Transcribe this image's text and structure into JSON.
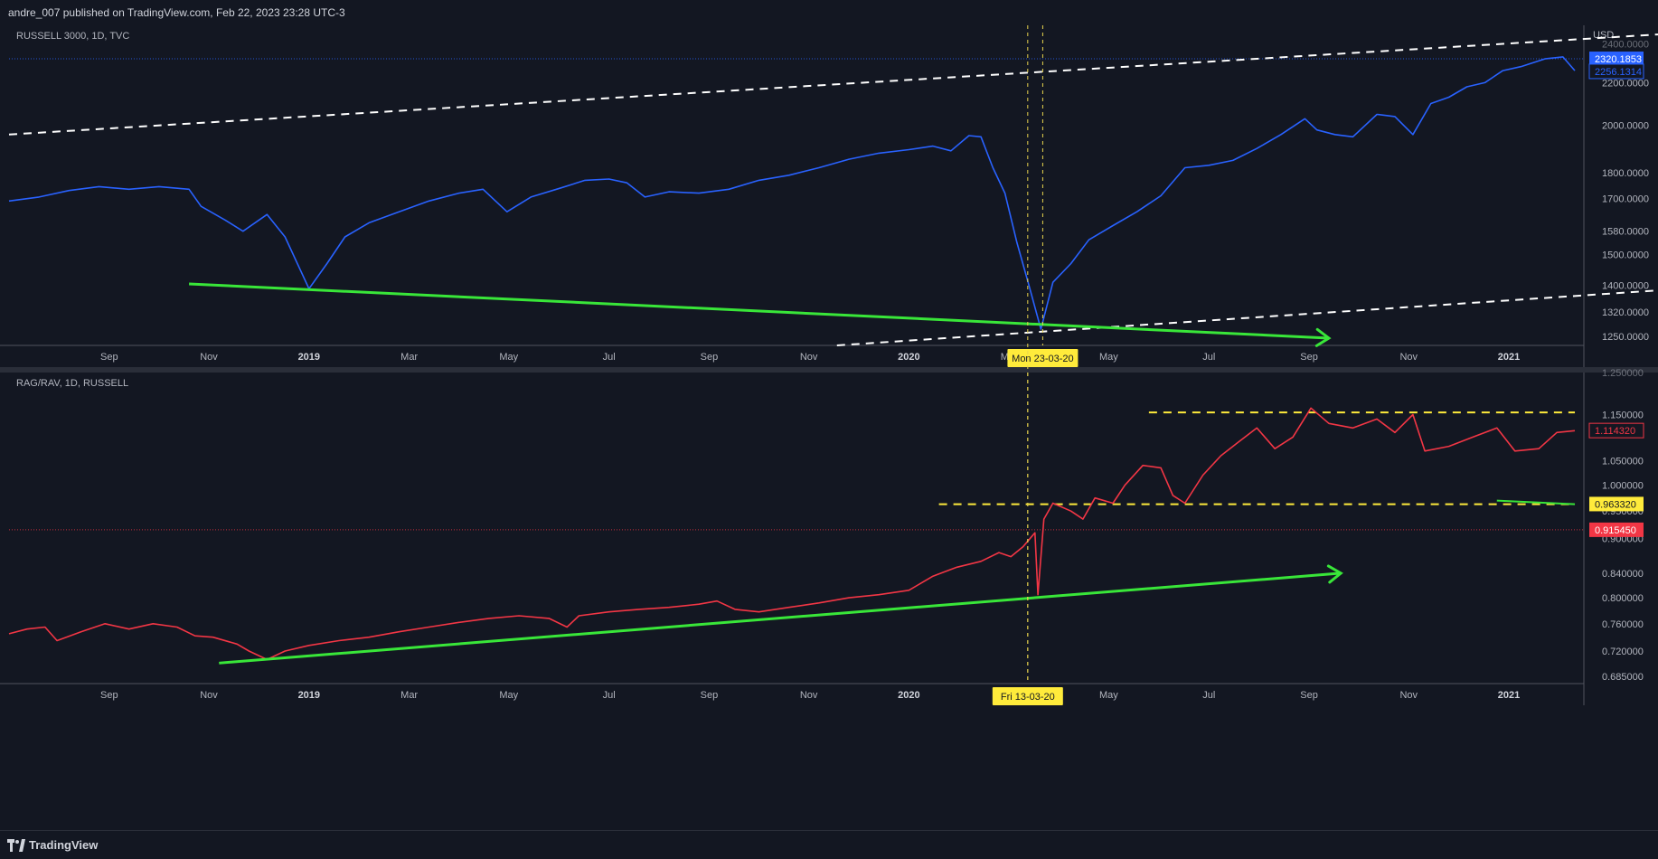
{
  "header": {
    "publish_text": "andre_007 published on TradingView.com, Feb 22, 2023 23:28 UTC-3"
  },
  "footer": {
    "brand": "TradingView",
    "logo_icon": "tradingview-logo-icon"
  },
  "colors": {
    "background": "#131722",
    "price_line": "#2962ff",
    "ratio_line": "#f23645",
    "trend_green": "#39e639",
    "dashed_white": "#ffffff",
    "dashed_yellow": "#ffeb3b",
    "crosshair": "#e8d44d"
  },
  "chart_data": [
    {
      "type": "line",
      "title": "RUSSELL 3000, 1D, TVC",
      "currency_label": "USD",
      "scale": "log",
      "ylim": [
        1225,
        2500
      ],
      "y_ticks": [
        "2200.0000",
        "2000.0000",
        "1800.0000",
        "1700.0000",
        "1580.0000",
        "1500.0000",
        "1400.0000",
        "1320.0000",
        "1250.0000"
      ],
      "y_tick_values": [
        2200,
        2000,
        1800,
        1700,
        1580,
        1500,
        1400,
        1320,
        1250
      ],
      "top_cut_tick": "2400.0000",
      "top_cut_value": 2400,
      "x_ticks": [
        {
          "label": "Sep",
          "t": 2018.667,
          "bold": false
        },
        {
          "label": "Nov",
          "t": 2018.833,
          "bold": false
        },
        {
          "label": "2019",
          "t": 2019.0,
          "bold": true
        },
        {
          "label": "Mar",
          "t": 2019.167,
          "bold": false
        },
        {
          "label": "May",
          "t": 2019.333,
          "bold": false
        },
        {
          "label": "Jul",
          "t": 2019.5,
          "bold": false
        },
        {
          "label": "Sep",
          "t": 2019.667,
          "bold": false
        },
        {
          "label": "Nov",
          "t": 2019.833,
          "bold": false
        },
        {
          "label": "2020",
          "t": 2020.0,
          "bold": true
        },
        {
          "label": "Mar",
          "t": 2020.167,
          "bold": false
        },
        {
          "label": "May",
          "t": 2020.333,
          "bold": false
        },
        {
          "label": "Jul",
          "t": 2020.5,
          "bold": false
        },
        {
          "label": "Sep",
          "t": 2020.667,
          "bold": false
        },
        {
          "label": "Nov",
          "t": 2020.833,
          "bold": false
        },
        {
          "label": "2021",
          "t": 2021.0,
          "bold": true
        }
      ],
      "series": [
        {
          "values_xy": [
            [
              2018.5,
              1690
            ],
            [
              2018.55,
              1705
            ],
            [
              2018.6,
              1730
            ],
            [
              2018.65,
              1745
            ],
            [
              2018.7,
              1735
            ],
            [
              2018.75,
              1745
            ],
            [
              2018.8,
              1735
            ],
            [
              2018.82,
              1670
            ],
            [
              2018.86,
              1620
            ],
            [
              2018.89,
              1580
            ],
            [
              2018.93,
              1640
            ],
            [
              2018.96,
              1560
            ],
            [
              2019.0,
              1390
            ],
            [
              2019.03,
              1470
            ],
            [
              2019.06,
              1560
            ],
            [
              2019.1,
              1610
            ],
            [
              2019.15,
              1650
            ],
            [
              2019.2,
              1690
            ],
            [
              2019.25,
              1720
            ],
            [
              2019.29,
              1735
            ],
            [
              2019.33,
              1650
            ],
            [
              2019.37,
              1705
            ],
            [
              2019.42,
              1740
            ],
            [
              2019.46,
              1770
            ],
            [
              2019.5,
              1775
            ],
            [
              2019.53,
              1760
            ],
            [
              2019.56,
              1705
            ],
            [
              2019.6,
              1725
            ],
            [
              2019.65,
              1720
            ],
            [
              2019.7,
              1735
            ],
            [
              2019.75,
              1770
            ],
            [
              2019.8,
              1790
            ],
            [
              2019.85,
              1820
            ],
            [
              2019.9,
              1855
            ],
            [
              2019.95,
              1880
            ],
            [
              2020.0,
              1895
            ],
            [
              2020.04,
              1910
            ],
            [
              2020.07,
              1890
            ],
            [
              2020.1,
              1955
            ],
            [
              2020.12,
              1950
            ],
            [
              2020.14,
              1820
            ],
            [
              2020.16,
              1720
            ],
            [
              2020.18,
              1540
            ],
            [
              2020.2,
              1400
            ],
            [
              2020.22,
              1270
            ],
            [
              2020.24,
              1410
            ],
            [
              2020.27,
              1470
            ],
            [
              2020.3,
              1550
            ],
            [
              2020.34,
              1600
            ],
            [
              2020.38,
              1650
            ],
            [
              2020.42,
              1710
            ],
            [
              2020.46,
              1820
            ],
            [
              2020.5,
              1830
            ],
            [
              2020.54,
              1850
            ],
            [
              2020.58,
              1900
            ],
            [
              2020.62,
              1960
            ],
            [
              2020.66,
              2030
            ],
            [
              2020.68,
              1980
            ],
            [
              2020.71,
              1960
            ],
            [
              2020.74,
              1950
            ],
            [
              2020.78,
              2050
            ],
            [
              2020.81,
              2040
            ],
            [
              2020.84,
              1960
            ],
            [
              2020.87,
              2100
            ],
            [
              2020.9,
              2130
            ],
            [
              2020.93,
              2180
            ],
            [
              2020.96,
              2200
            ],
            [
              2020.99,
              2260
            ],
            [
              2021.02,
              2280
            ],
            [
              2021.06,
              2320
            ],
            [
              2021.09,
              2330
            ],
            [
              2021.11,
              2260
            ]
          ]
        }
      ],
      "price_tags": [
        {
          "label": "2320.1853",
          "value": 2320.1853,
          "style": "fill"
        },
        {
          "label": "2256.1314",
          "value": 2256.1314,
          "style": "outline"
        }
      ],
      "dashed_lines": [
        {
          "t1": 2018.5,
          "v1": 1960,
          "t2": 2021.25,
          "v2": 2450
        },
        {
          "t1": 2019.88,
          "v1": 1225,
          "t2": 2021.25,
          "v2": 1385
        }
      ],
      "trend_line": {
        "t1": 2018.8,
        "v1": 1405,
        "t2": 2020.7,
        "v2": 1245,
        "arrow": true
      },
      "crosshair": {
        "label": "Mon 23-03-20",
        "t": 2020.223
      }
    },
    {
      "type": "line",
      "title": "RAG/RAV, 1D, RUSSELL",
      "scale": "log",
      "ylim": [
        0.675,
        1.25
      ],
      "y_ticks": [
        "1.150000",
        "1.050000",
        "1.000000",
        "0.900000",
        "0.840000",
        "0.800000",
        "0.760000",
        "0.720000",
        "0.685000"
      ],
      "y_tick_values": [
        1.15,
        1.05,
        1.0,
        0.9,
        0.84,
        0.8,
        0.76,
        0.72,
        0.685
      ],
      "top_cut_tick": "1.250000",
      "top_cut_value": 1.25,
      "hidden_tick": "0.950000",
      "hidden_tick_value": 0.95,
      "x_ticks": [
        {
          "label": "Sep",
          "t": 2018.667,
          "bold": false
        },
        {
          "label": "Nov",
          "t": 2018.833,
          "bold": false
        },
        {
          "label": "2019",
          "t": 2019.0,
          "bold": true
        },
        {
          "label": "Mar",
          "t": 2019.167,
          "bold": false
        },
        {
          "label": "May",
          "t": 2019.333,
          "bold": false
        },
        {
          "label": "Jul",
          "t": 2019.5,
          "bold": false
        },
        {
          "label": "Sep",
          "t": 2019.667,
          "bold": false
        },
        {
          "label": "Nov",
          "t": 2019.833,
          "bold": false
        },
        {
          "label": "2020",
          "t": 2020.0,
          "bold": true
        },
        {
          "label": "Mar",
          "t": 2020.167,
          "bold": false
        },
        {
          "label": "May",
          "t": 2020.333,
          "bold": false
        },
        {
          "label": "Jul",
          "t": 2020.5,
          "bold": false
        },
        {
          "label": "Sep",
          "t": 2020.667,
          "bold": false
        },
        {
          "label": "Nov",
          "t": 2020.833,
          "bold": false
        },
        {
          "label": "2021",
          "t": 2021.0,
          "bold": true
        }
      ],
      "series": [
        {
          "values_xy": [
            [
              2018.5,
              0.745
            ],
            [
              2018.53,
              0.752
            ],
            [
              2018.56,
              0.755
            ],
            [
              2018.58,
              0.735
            ],
            [
              2018.62,
              0.748
            ],
            [
              2018.66,
              0.76
            ],
            [
              2018.7,
              0.752
            ],
            [
              2018.74,
              0.76
            ],
            [
              2018.78,
              0.755
            ],
            [
              2018.81,
              0.742
            ],
            [
              2018.84,
              0.74
            ],
            [
              2018.88,
              0.73
            ],
            [
              2018.9,
              0.72
            ],
            [
              2018.93,
              0.708
            ],
            [
              2018.96,
              0.72
            ],
            [
              2019.0,
              0.728
            ],
            [
              2019.05,
              0.735
            ],
            [
              2019.1,
              0.74
            ],
            [
              2019.15,
              0.748
            ],
            [
              2019.2,
              0.755
            ],
            [
              2019.25,
              0.762
            ],
            [
              2019.3,
              0.768
            ],
            [
              2019.35,
              0.772
            ],
            [
              2019.4,
              0.768
            ],
            [
              2019.43,
              0.755
            ],
            [
              2019.45,
              0.772
            ],
            [
              2019.5,
              0.778
            ],
            [
              2019.55,
              0.782
            ],
            [
              2019.6,
              0.785
            ],
            [
              2019.65,
              0.79
            ],
            [
              2019.68,
              0.795
            ],
            [
              2019.71,
              0.782
            ],
            [
              2019.75,
              0.778
            ],
            [
              2019.8,
              0.785
            ],
            [
              2019.85,
              0.792
            ],
            [
              2019.9,
              0.8
            ],
            [
              2019.95,
              0.805
            ],
            [
              2020.0,
              0.812
            ],
            [
              2020.04,
              0.835
            ],
            [
              2020.08,
              0.85
            ],
            [
              2020.12,
              0.86
            ],
            [
              2020.15,
              0.875
            ],
            [
              2020.17,
              0.868
            ],
            [
              2020.19,
              0.885
            ],
            [
              2020.21,
              0.91
            ],
            [
              2020.215,
              0.805
            ],
            [
              2020.225,
              0.935
            ],
            [
              2020.24,
              0.965
            ],
            [
              2020.27,
              0.95
            ],
            [
              2020.29,
              0.935
            ],
            [
              2020.31,
              0.975
            ],
            [
              2020.34,
              0.965
            ],
            [
              2020.36,
              1.0
            ],
            [
              2020.39,
              1.04
            ],
            [
              2020.42,
              1.035
            ],
            [
              2020.44,
              0.98
            ],
            [
              2020.46,
              0.965
            ],
            [
              2020.49,
              1.02
            ],
            [
              2020.52,
              1.06
            ],
            [
              2020.55,
              1.09
            ],
            [
              2020.58,
              1.12
            ],
            [
              2020.61,
              1.075
            ],
            [
              2020.64,
              1.1
            ],
            [
              2020.67,
              1.165
            ],
            [
              2020.7,
              1.13
            ],
            [
              2020.74,
              1.12
            ],
            [
              2020.78,
              1.14
            ],
            [
              2020.81,
              1.11
            ],
            [
              2020.84,
              1.15
            ],
            [
              2020.86,
              1.07
            ],
            [
              2020.9,
              1.08
            ],
            [
              2020.94,
              1.1
            ],
            [
              2020.98,
              1.12
            ],
            [
              2021.01,
              1.07
            ],
            [
              2021.05,
              1.075
            ],
            [
              2021.08,
              1.11
            ],
            [
              2021.11,
              1.114
            ]
          ]
        }
      ],
      "price_tags": [
        {
          "label": "1.114320",
          "value": 1.11432,
          "style": "outline"
        },
        {
          "label": "0.963320",
          "value": 0.96332,
          "style": "yellow"
        },
        {
          "label": "0.915450",
          "value": 0.91545,
          "style": "fill"
        }
      ],
      "dashed_lines": [
        {
          "t1": 2020.4,
          "v1": 1.155,
          "t2": 2021.11,
          "v2": 1.155,
          "color": "yellow"
        },
        {
          "t1": 2020.05,
          "v1": 0.963,
          "t2": 2021.11,
          "v2": 0.963,
          "color": "yellow"
        }
      ],
      "dotted_level": {
        "value": 0.91545
      },
      "trend_line": {
        "t1": 2018.85,
        "v1": 0.703,
        "t2": 2020.72,
        "v2": 0.84,
        "arrow": true
      },
      "short_green_line": {
        "t1": 2020.98,
        "v1": 0.97,
        "t2": 2021.11,
        "v2": 0.963
      },
      "crosshair": {
        "label": "Fri 13-03-20",
        "t": 2020.198
      }
    }
  ]
}
